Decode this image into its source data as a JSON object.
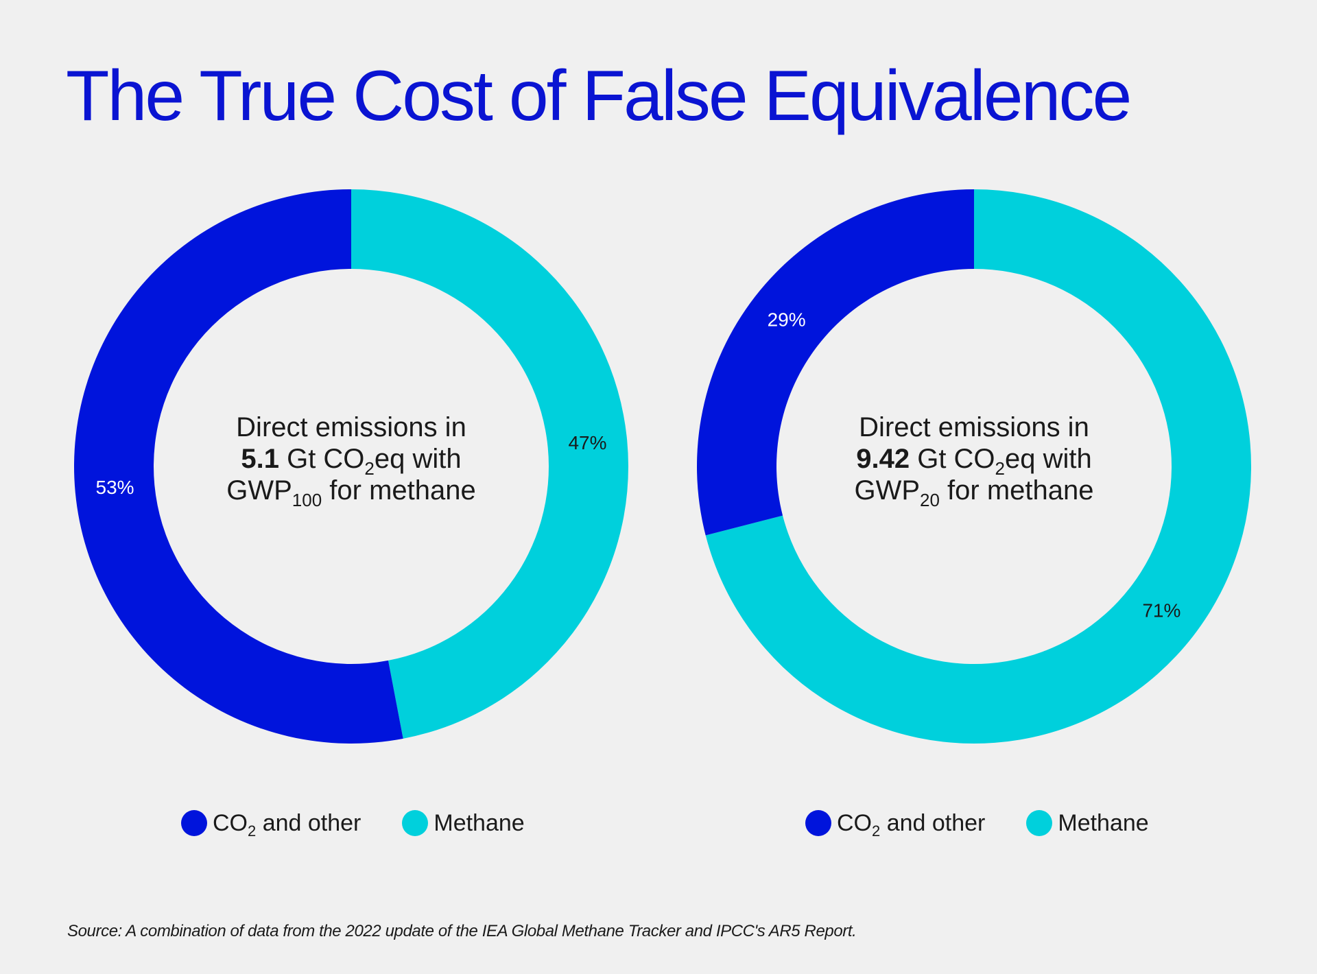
{
  "page": {
    "title": "The True Cost of False Equivalence",
    "source": "Source: A combination of data from the 2022 update of the IEA Global Methane Tracker and IPCC's AR5 Report."
  },
  "colors": {
    "co2": "#0014dc",
    "methane": "#00d0dc",
    "title": "#0a14d2",
    "background": "#f0f0f0"
  },
  "chart_data": [
    {
      "type": "pie",
      "variant": "donut",
      "slices": [
        {
          "name": "Methane",
          "value": 47,
          "label": "47%"
        },
        {
          "name": "CO2 and other",
          "value": 53,
          "label": "53%"
        }
      ],
      "center": {
        "line1": "Direct emissions in",
        "value": "5.1",
        "unit_pre": " Gt CO",
        "unit_sub": "2",
        "unit_post": "eq with",
        "metric": "GWP",
        "metric_sub": "100",
        "metric_post": " for methane"
      },
      "legend": [
        {
          "name": "CO2 and other",
          "prefix": "CO",
          "sub": "2",
          "suffix": " and other"
        },
        {
          "name": "Methane",
          "prefix": "Methane",
          "sub": "",
          "suffix": ""
        }
      ],
      "legend_position": "bottom"
    },
    {
      "type": "pie",
      "variant": "donut",
      "slices": [
        {
          "name": "Methane",
          "value": 71,
          "label": "71%"
        },
        {
          "name": "CO2 and other",
          "value": 29,
          "label": "29%"
        }
      ],
      "center": {
        "line1": "Direct emissions in",
        "value": "9.42",
        "unit_pre": " Gt CO",
        "unit_sub": "2",
        "unit_post": "eq with",
        "metric": "GWP",
        "metric_sub": "20",
        "metric_post": " for methane"
      },
      "legend": [
        {
          "name": "CO2 and other",
          "prefix": "CO",
          "sub": "2",
          "suffix": " and other"
        },
        {
          "name": "Methane",
          "prefix": "Methane",
          "sub": "",
          "suffix": ""
        }
      ],
      "legend_position": "bottom"
    }
  ]
}
